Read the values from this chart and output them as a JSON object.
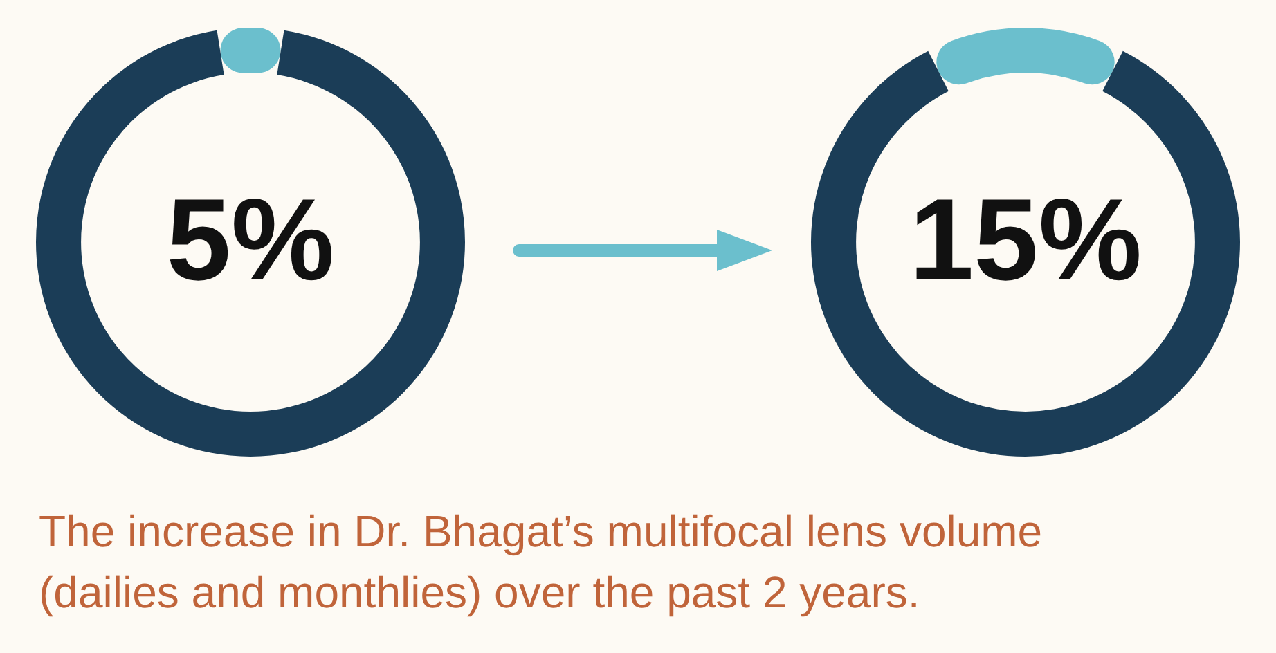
{
  "chart_data": [
    {
      "type": "donut",
      "categories": [
        null,
        null
      ],
      "values": [
        5,
        95
      ],
      "colors": [
        "#6bbfcd",
        "#1b3d57"
      ],
      "value_labels": [
        "5%",
        null
      ]
    },
    {
      "type": "donut",
      "categories": [
        null,
        null
      ],
      "values": [
        15,
        85
      ],
      "colors": [
        "#6bbfcd",
        "#1b3d57"
      ],
      "value_labels": [
        "15%",
        null
      ]
    },
    {
      "type": "other",
      "annotations": [
        "The increase in Dr. Bhagat’s multifocal lens volume (dailies and monthlies) over the past 2 years."
      ]
    }
  ]
}
